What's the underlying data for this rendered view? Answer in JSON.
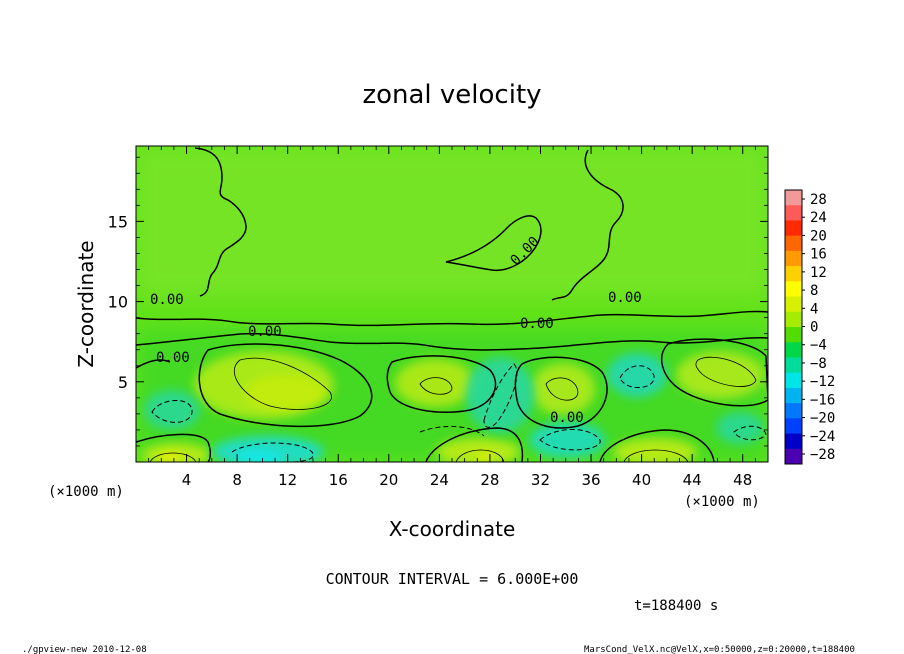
{
  "chart_data": {
    "type": "heatmap",
    "title": "zonal velocity",
    "xlabel": "X-coordinate",
    "ylabel": "Z-coordinate",
    "x_unit_left": "(×1000 m)",
    "x_unit_right": "(×1000 m)",
    "xlim": [
      0,
      50
    ],
    "ylim": [
      0,
      19.7
    ],
    "xticks": [
      4,
      8,
      12,
      16,
      20,
      24,
      28,
      32,
      36,
      40,
      44,
      48
    ],
    "yticks": [
      5,
      10,
      15
    ],
    "contour_label": "0.00",
    "contour_interval_text": "CONTOUR INTERVAL = 6.000E+00",
    "time_text": "t=188400 s",
    "footer_left": "./gpview-new  2010-12-08",
    "footer_right": "MarsCond_VelX.nc@VelX,x=0:50000,z=0:20000,t=188400",
    "colorbar": {
      "labels": [
        "28",
        "24",
        "20",
        "16",
        "12",
        "8",
        "4",
        "0",
        "−4",
        "−8",
        "−12",
        "−16",
        "−20",
        "−24",
        "−28"
      ],
      "colors": [
        "#f29a9a",
        "#ff5a5a",
        "#ff2a00",
        "#ff6600",
        "#ff9a00",
        "#ffd000",
        "#ffff00",
        "#d7f000",
        "#a6ec00",
        "#52dc00",
        "#00d84a",
        "#00dc9a",
        "#00e6e6",
        "#00b4f0",
        "#0078ff",
        "#0040ff",
        "#0000c8",
        "#4a00b0"
      ]
    },
    "field_notes": {
      "background_value_range": [
        -4,
        4
      ],
      "positive_cells": [
        [
          5,
          7.5
        ],
        [
          12,
          7
        ],
        [
          24,
          6.5
        ],
        [
          33,
          6
        ],
        [
          48,
          7.5
        ],
        [
          3,
          0.5
        ],
        [
          28,
          0.5
        ],
        [
          40,
          0.5
        ]
      ],
      "negative_cells": [
        [
          3,
          3.5
        ],
        [
          10,
          0.5
        ],
        [
          24,
          2.5
        ],
        [
          27,
          5
        ],
        [
          34,
          1.5
        ],
        [
          39.5,
          5.5
        ],
        [
          47,
          2.5
        ]
      ]
    }
  }
}
